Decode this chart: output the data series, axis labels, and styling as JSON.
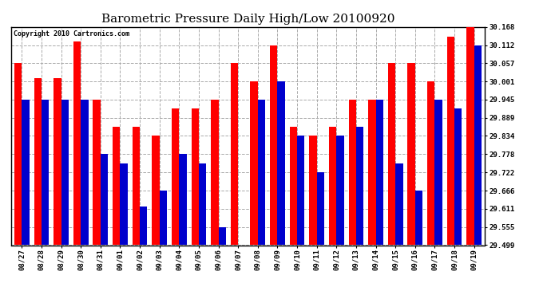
{
  "title": "Barometric Pressure Daily High/Low 20100920",
  "copyright": "Copyright 2010 Cartronics.com",
  "categories": [
    "08/27",
    "08/28",
    "08/29",
    "08/30",
    "08/31",
    "09/01",
    "09/02",
    "09/03",
    "09/04",
    "09/05",
    "09/06",
    "09/07",
    "09/08",
    "09/09",
    "09/10",
    "09/11",
    "09/12",
    "09/13",
    "09/14",
    "09/15",
    "09/16",
    "09/17",
    "09/18",
    "09/19"
  ],
  "highs": [
    30.057,
    30.012,
    30.012,
    30.124,
    29.945,
    29.862,
    29.862,
    29.834,
    29.917,
    29.917,
    29.945,
    30.057,
    30.001,
    30.112,
    29.862,
    29.834,
    29.862,
    29.945,
    29.945,
    30.057,
    30.057,
    30.001,
    30.139,
    30.168
  ],
  "lows": [
    29.945,
    29.945,
    29.945,
    29.945,
    29.778,
    29.75,
    29.617,
    29.667,
    29.778,
    29.75,
    29.555,
    29.5,
    29.945,
    30.001,
    29.834,
    29.722,
    29.834,
    29.862,
    29.945,
    29.75,
    29.666,
    29.945,
    29.917,
    30.112
  ],
  "ylim_min": 29.499,
  "ylim_max": 30.168,
  "yticks": [
    29.499,
    29.555,
    29.611,
    29.666,
    29.722,
    29.778,
    29.834,
    29.889,
    29.945,
    30.001,
    30.057,
    30.112,
    30.168
  ],
  "high_color": "#ff0000",
  "low_color": "#0000cc",
  "bg_color": "#ffffff",
  "grid_color": "#aaaaaa",
  "bar_width": 0.38,
  "title_fontsize": 11,
  "copyright_fontsize": 6,
  "tick_fontsize": 6.5,
  "figwidth": 6.9,
  "figheight": 3.75,
  "dpi": 100
}
